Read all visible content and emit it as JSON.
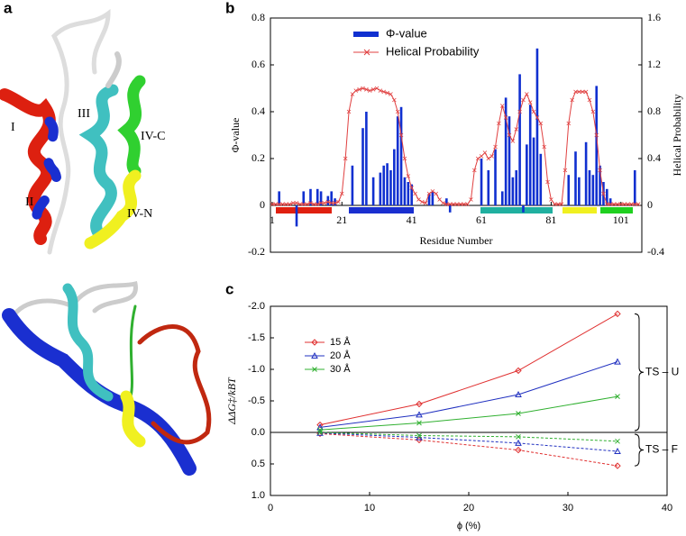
{
  "panel_labels": [
    "a",
    "b",
    "c"
  ],
  "structure_labels": [
    "I",
    "II",
    "III",
    "IV-C",
    "IV-N"
  ],
  "chart_data": [
    {
      "type": "bar_line",
      "xlabel": "Residue Number",
      "ylabel": "Φ-value",
      "y2label": "Helical Probability",
      "xlim": [
        0.5,
        107
      ],
      "xticks": [
        1,
        21,
        41,
        61,
        81,
        101
      ],
      "ylim": [
        -0.2,
        0.8
      ],
      "yticks": [
        -0.2,
        0,
        0.2,
        0.4,
        0.6,
        0.8
      ],
      "y2lim": [
        -0.4,
        1.6
      ],
      "y2ticks": [
        -0.4,
        0,
        0.4,
        0.8,
        1.2,
        1.6
      ],
      "series": [
        {
          "name": "Φ-value",
          "color": "#1030d0",
          "x": [
            3,
            8,
            10,
            12,
            14,
            15,
            17,
            18,
            19,
            24,
            27,
            28,
            30,
            32,
            33,
            34,
            35,
            36,
            37,
            38,
            39,
            40,
            41,
            46,
            47,
            51,
            52,
            61,
            63,
            65,
            67,
            68,
            69,
            70,
            71,
            72,
            73,
            74,
            75,
            76,
            77,
            78,
            86,
            88,
            89,
            91,
            92,
            93,
            94,
            95,
            96,
            97,
            98,
            105
          ],
          "values": [
            0.06,
            -0.09,
            0.06,
            0.07,
            0.07,
            0.06,
            0.04,
            0.06,
            0.03,
            0.17,
            0.33,
            0.4,
            0.12,
            0.14,
            0.17,
            0.18,
            0.15,
            0.24,
            0.38,
            0.42,
            0.12,
            0.1,
            0.09,
            0.05,
            0.06,
            0.03,
            -0.03,
            0.2,
            0.15,
            0.24,
            0.06,
            0.46,
            0.38,
            0.12,
            0.15,
            0.56,
            -0.03,
            0.26,
            0.43,
            0.29,
            0.67,
            0.22,
            0.13,
            0.23,
            0.12,
            0.27,
            0.15,
            0.13,
            0.51,
            0.17,
            0.1,
            0.07,
            0.03,
            0.15
          ]
        },
        {
          "name": "Helical Probability",
          "color": "#e04040",
          "axis": "y2",
          "x": [
            1,
            2,
            3,
            4,
            5,
            6,
            7,
            8,
            9,
            10,
            11,
            12,
            13,
            14,
            15,
            16,
            17,
            18,
            19,
            20,
            21,
            22,
            23,
            24,
            25,
            26,
            27,
            28,
            29,
            30,
            31,
            32,
            33,
            34,
            35,
            36,
            37,
            38,
            39,
            40,
            41,
            42,
            43,
            44,
            45,
            46,
            47,
            48,
            49,
            50,
            51,
            52,
            53,
            54,
            55,
            56,
            57,
            58,
            59,
            60,
            61,
            62,
            63,
            64,
            65,
            66,
            67,
            68,
            69,
            70,
            71,
            72,
            73,
            74,
            75,
            76,
            77,
            78,
            79,
            80,
            81,
            82,
            83,
            84,
            85,
            86,
            87,
            88,
            89,
            90,
            91,
            92,
            93,
            94,
            95,
            96,
            97,
            98,
            99,
            100,
            101,
            102,
            103,
            104,
            105,
            106
          ],
          "values": [
            0.01,
            0.01,
            0.01,
            0.01,
            0.01,
            0.01,
            0.02,
            0.02,
            0.01,
            0.01,
            0.01,
            0.02,
            0.01,
            0.01,
            0.02,
            0.02,
            0.03,
            0.02,
            0.02,
            0.03,
            0.1,
            0.4,
            0.8,
            0.95,
            0.98,
            0.99,
            1.0,
            0.99,
            0.98,
            0.99,
            1.0,
            0.98,
            0.97,
            0.96,
            0.95,
            0.9,
            0.8,
            0.6,
            0.4,
            0.25,
            0.15,
            0.1,
            0.05,
            0.03,
            0.02,
            0.1,
            0.12,
            0.1,
            0.05,
            0.02,
            0.01,
            0.01,
            0.01,
            0.01,
            0.01,
            0.01,
            0.01,
            0.05,
            0.3,
            0.4,
            0.42,
            0.45,
            0.4,
            0.42,
            0.5,
            0.7,
            0.85,
            0.75,
            0.6,
            0.55,
            0.65,
            0.8,
            0.9,
            0.95,
            0.88,
            0.8,
            0.75,
            0.7,
            0.5,
            0.2,
            0.05,
            0.01,
            0.01,
            0.01,
            0.3,
            0.7,
            0.9,
            0.97,
            0.97,
            0.97,
            0.97,
            0.9,
            0.8,
            0.6,
            0.3,
            0.1,
            0.01,
            0.01,
            0.01,
            0.01,
            0.01,
            0.01,
            0.01,
            0.01,
            0.01,
            0.01
          ]
        }
      ]
    },
    {
      "type": "line",
      "xlabel": "ϕ (%)",
      "ylabel": "ΔΔG‡/kBT",
      "y_inverted": true,
      "x": [
        5,
        15,
        25,
        35
      ],
      "xlim": [
        0,
        40
      ],
      "xticks": [
        0,
        10,
        20,
        30,
        40
      ],
      "ylim": [
        -2.0,
        1.0
      ],
      "yticks": [
        {
          "value": -2.0,
          "label": "-2.0"
        },
        {
          "value": -1.5,
          "label": "-1.5"
        },
        {
          "value": -1.0,
          "label": "-1.0"
        },
        {
          "value": -0.5,
          "label": "-0.5"
        },
        {
          "value": 0,
          "label": "0.0"
        },
        {
          "value": 0.5,
          "label": "0.5"
        },
        {
          "value": 1.0,
          "label": "1.0"
        }
      ],
      "groups": [
        "TS – U",
        "TS – F"
      ],
      "series": [
        {
          "name": "15 Å",
          "color": "#e03030",
          "marker": "diamond",
          "values": [
            -0.12,
            -0.45,
            -0.98,
            -1.88
          ],
          "values_f": [
            0.02,
            0.12,
            0.28,
            0.53
          ]
        },
        {
          "name": "20 Å",
          "color": "#2030c0",
          "marker": "triangle",
          "values": [
            -0.08,
            -0.28,
            -0.6,
            -1.12
          ],
          "values_f": [
            0.01,
            0.08,
            0.17,
            0.3
          ]
        },
        {
          "name": "30 Å",
          "color": "#30b030",
          "marker": "x",
          "values": [
            -0.04,
            -0.15,
            -0.3,
            -0.57
          ],
          "values_f": [
            0.0,
            0.05,
            0.07,
            0.14
          ]
        }
      ]
    }
  ]
}
